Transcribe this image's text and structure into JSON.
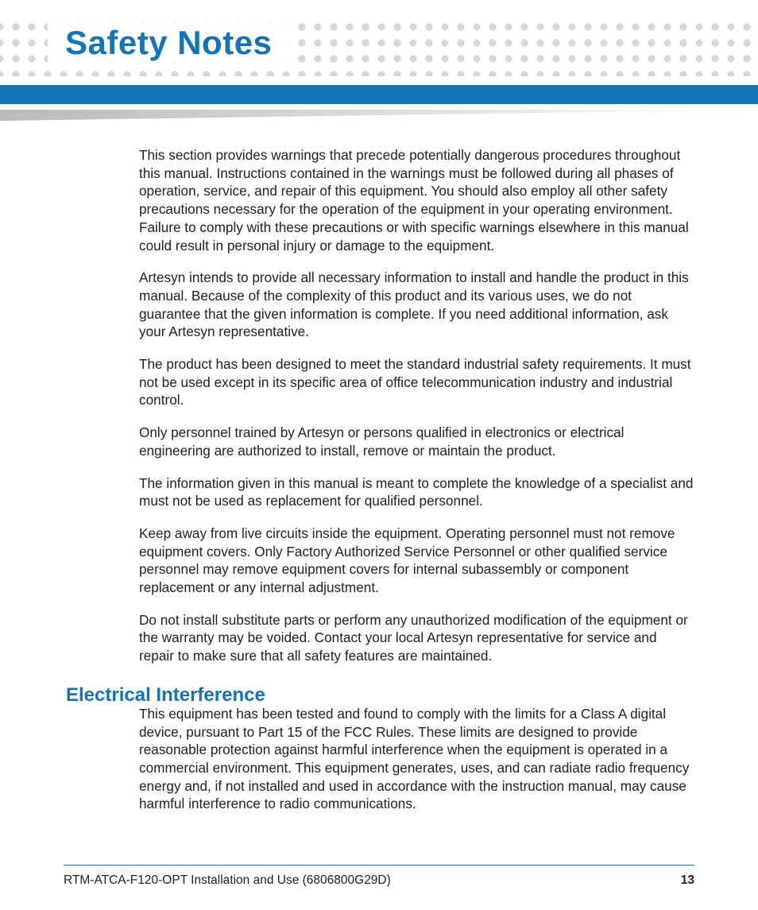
{
  "colors": {
    "accent": "#1474b8",
    "dots": "#d4d6d8",
    "text": "#222222",
    "background": "#ffffff"
  },
  "title": "Safety Notes",
  "paragraphs": [
    "This section provides warnings that precede potentially dangerous procedures throughout this manual. Instructions contained in the warnings must be followed during all phases of operation, service, and repair of this equipment. You should also employ all other safety precautions necessary for the operation of the equipment in your operating environment. Failure to comply with these precautions or with specific warnings elsewhere in this manual could result in personal injury or damage to the equipment.",
    "Artesyn intends to provide all necessary information to install and handle the product in this manual. Because of the complexity of this product and its various uses, we do not guarantee that the given information is complete. If you need additional information, ask your Artesyn representative.",
    "The product has been designed to meet the standard industrial safety requirements. It must not be used except in its specific area of office telecommunication industry and industrial control.",
    "Only personnel trained by Artesyn or persons qualified in electronics or electrical engineering are authorized to install, remove or maintain the product.",
    "The information given in this manual is meant to complete the knowledge of a specialist and must not be used as replacement for qualified personnel.",
    "Keep away from live circuits inside the equipment. Operating personnel must not remove equipment covers. Only Factory Authorized Service Personnel or other qualified service personnel may remove equipment covers for internal subassembly or component replacement or any internal adjustment.",
    "Do not install substitute parts or perform any unauthorized modification of the equipment or the warranty may be voided. Contact your local Artesyn representative for service and repair to make sure that all safety features are maintained."
  ],
  "sub_heading": "Electrical Interference",
  "sub_paragraph": "This equipment has been tested and found to comply with the limits for a Class A digital device, pursuant to Part 15 of the FCC Rules. These limits are designed to provide reasonable protection against harmful interference when the equipment is operated in a commercial environment. This equipment generates, uses, and can radiate radio frequency energy and, if not installed and used in accordance with the instruction manual, may cause harmful interference to radio communications.",
  "footer": {
    "doc": "RTM-ATCA-F120-OPT Installation and Use (6806800G29D)",
    "page": "13"
  },
  "typography": {
    "title_fontsize": 42,
    "title_weight": 700,
    "body_fontsize": 17,
    "body_lineheight": 1.32,
    "subheading_fontsize": 24
  }
}
